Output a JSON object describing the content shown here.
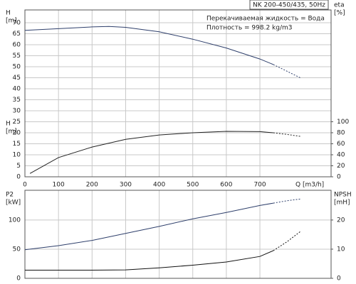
{
  "chart_data": [
    {
      "type": "line",
      "title": "NK 200-450/435, 50Hz",
      "annotations": [
        "Перекачиваемая жидкость = Вода",
        "Плотность = 998.2 kg/m3"
      ],
      "y_labels": [
        [
          "H",
          "[m]"
        ],
        [
          "H",
          "[m]"
        ]
      ],
      "y2_label": [
        "eta",
        "[%]"
      ],
      "x_label": "Q [m3/h]",
      "xlim": [
        0,
        912
      ],
      "xticks": [
        0,
        100,
        200,
        300,
        400,
        500,
        600,
        700
      ],
      "xtick_labels": true,
      "ylim": [
        0,
        75.8
      ],
      "yticks": [
        0,
        5,
        10,
        15,
        20,
        25,
        30,
        35,
        40,
        45,
        50,
        55,
        60,
        65,
        70
      ],
      "y2lim": [
        0,
        303
      ],
      "y2ticks": [
        0,
        20,
        40,
        60,
        80,
        100
      ],
      "grid": true,
      "series": [
        {
          "color": "#2e3f6b",
          "dashed": false,
          "x": [
            0,
            100,
            200,
            250,
            300,
            400,
            500,
            600,
            700,
            740
          ],
          "values": [
            66.5,
            67.3,
            68.1,
            68.3,
            67.9,
            65.9,
            62.5,
            58.5,
            53.5,
            51
          ]
        },
        {
          "color": "#2e3f6b",
          "dashed": true,
          "x": [
            740,
            780,
            820
          ],
          "values": [
            51,
            48,
            45
          ]
        },
        {
          "color": "#222222",
          "dashed": false,
          "axis": "y2",
          "x": [
            15,
            100,
            200,
            300,
            400,
            500,
            600,
            700,
            740
          ],
          "values": [
            6,
            35,
            54,
            68,
            76,
            80,
            82.5,
            82,
            80
          ]
        },
        {
          "color": "#222222",
          "dashed": true,
          "axis": "y2",
          "x": [
            740,
            780,
            820
          ],
          "values": [
            80,
            77,
            73.5
          ]
        }
      ]
    },
    {
      "type": "line",
      "y_labels": [
        [
          "P2",
          "[kW]"
        ]
      ],
      "y2_label": [
        "NPSH",
        "[mH]"
      ],
      "xlim": [
        0,
        912
      ],
      "xticks": [
        0,
        100,
        200,
        300,
        400,
        500,
        600,
        700
      ],
      "xtick_labels": false,
      "ylim": [
        0,
        151
      ],
      "yticks": [
        0,
        50,
        100
      ],
      "y2lim": [
        0,
        30.2
      ],
      "y2ticks": [
        0,
        10,
        20
      ],
      "grid": true,
      "series": [
        {
          "color": "#2e3f6b",
          "dashed": false,
          "x": [
            0,
            100,
            200,
            300,
            400,
            500,
            600,
            700,
            740
          ],
          "values": [
            49,
            56,
            65,
            77,
            89,
            102,
            113,
            125,
            129
          ]
        },
        {
          "color": "#2e3f6b",
          "dashed": true,
          "x": [
            740,
            780,
            820
          ],
          "values": [
            129,
            133,
            136
          ]
        },
        {
          "color": "#111111",
          "dashed": false,
          "axis": "y2",
          "x": [
            0,
            100,
            200,
            300,
            400,
            500,
            600,
            700,
            740
          ],
          "values": [
            2.8,
            2.8,
            2.8,
            2.9,
            3.6,
            4.5,
            5.6,
            7.5,
            9.5
          ]
        },
        {
          "color": "#111111",
          "dashed": true,
          "axis": "y2",
          "x": [
            740,
            780,
            820
          ],
          "values": [
            9.5,
            12.5,
            16
          ]
        }
      ]
    }
  ]
}
